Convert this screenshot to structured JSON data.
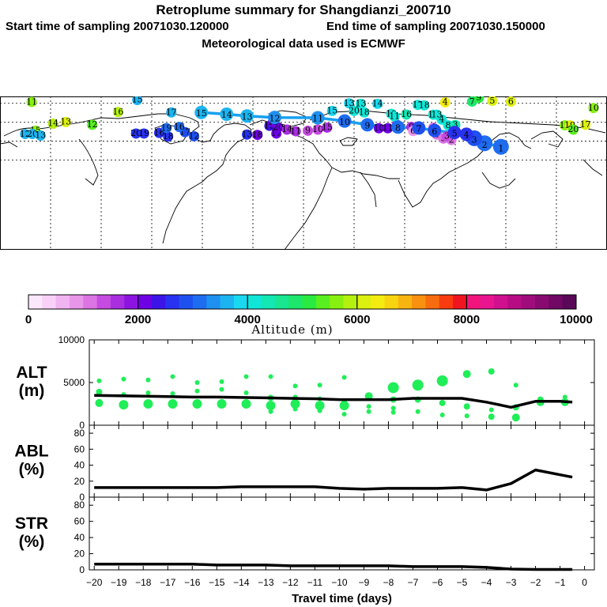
{
  "header": {
    "title": "Retroplume summary for Shangdianzi_200710",
    "start_label": "Start time of sampling 20071030.120000",
    "end_label": "End time of sampling 20071030.150000",
    "met_label": "Meteorological data used is ECMWF"
  },
  "colorbar": {
    "title": "Altitude (m)",
    "ticks": [
      "0",
      "2000",
      "4000",
      "6000",
      "8000",
      "10000"
    ],
    "range": [
      0,
      10000
    ],
    "colors": [
      "#fbe7fb",
      "#f8d0f8",
      "#f0b4f0",
      "#e896ea",
      "#dc74e4",
      "#c64be0",
      "#a82ee0",
      "#8c14e0",
      "#6e00e4",
      "#3c14e8",
      "#2832f0",
      "#1e50f0",
      "#1e6cf0",
      "#1e90f0",
      "#1cb4f0",
      "#1ad8f0",
      "#10e6d8",
      "#14e6b4",
      "#18e690",
      "#1ce66c",
      "#28ea40",
      "#58ee20",
      "#88f010",
      "#b4f010",
      "#dcf010",
      "#f4ec10",
      "#f8d410",
      "#f8b410",
      "#f89010",
      "#f86c10",
      "#f83c10",
      "#f01420",
      "#f0147c",
      "#e81490",
      "#d0108c",
      "#b80c84",
      "#a00c7c",
      "#880a70",
      "#700864",
      "#5a0858"
    ]
  },
  "map": {
    "trajectory_markers": [
      {
        "label": "1",
        "lon": 117.1,
        "lat": 40.6,
        "alt": 3000
      },
      {
        "label": "2",
        "lon": 107.4,
        "lat": 43.4,
        "alt": 3200
      },
      {
        "label": "3",
        "lon": 101.3,
        "lat": 47.4,
        "alt": 2900
      },
      {
        "label": "4",
        "lon": 96.6,
        "lat": 50.5,
        "alt": 2500
      },
      {
        "label": "5",
        "lon": 89.6,
        "lat": 51.9,
        "alt": 2700
      },
      {
        "label": "6",
        "lon": 77.7,
        "lat": 53.5,
        "alt": 2800
      },
      {
        "label": "7",
        "lon": 68.4,
        "lat": 55.5,
        "alt": 2900
      },
      {
        "label": "8",
        "lon": 56.0,
        "lat": 56.2,
        "alt": 3000
      },
      {
        "label": "9",
        "lon": 37.9,
        "lat": 58.0,
        "alt": 3100
      },
      {
        "label": "10",
        "lon": 24.4,
        "lat": 61.0,
        "alt": 3200
      },
      {
        "label": "11",
        "lon": 8.5,
        "lat": 63.6,
        "alt": 3300
      },
      {
        "label": "12",
        "lon": -17.1,
        "lat": 63.8,
        "alt": 3400
      },
      {
        "label": "13",
        "lon": -33.5,
        "lat": 65.0,
        "alt": 3500
      },
      {
        "label": "14",
        "lon": -45.6,
        "lat": 66.4,
        "alt": 3500
      },
      {
        "label": "15",
        "lon": -60.6,
        "lat": 67.8,
        "alt": 3600
      }
    ],
    "scatter_markers": [
      {
        "label": "11",
        "lon": -161.2,
        "lat": 76.1,
        "alt": 5600
      },
      {
        "label": "15",
        "lon": -98.6,
        "lat": 77.7,
        "alt": 3700
      },
      {
        "label": "16",
        "lon": -110.0,
        "lat": 68.1,
        "alt": 5800
      },
      {
        "label": "17",
        "lon": -78.4,
        "lat": 67.8,
        "alt": 3600
      },
      {
        "label": "14",
        "lon": -148.5,
        "lat": 58.9,
        "alt": 5800
      },
      {
        "label": "13",
        "lon": -141.0,
        "lat": 60.2,
        "alt": 6000
      },
      {
        "label": "12",
        "lon": -125.3,
        "lat": 58.0,
        "alt": 5400
      },
      {
        "label": "15",
        "lon": -159.0,
        "lat": 53.3,
        "alt": 5700
      },
      {
        "label": "12",
        "lon": -165.1,
        "lat": 50.7,
        "alt": 3700
      },
      {
        "label": "20",
        "lon": -160.8,
        "lat": 50.7,
        "alt": 3700
      },
      {
        "label": "13",
        "lon": -156.0,
        "lat": 49.5,
        "alt": 3700
      },
      {
        "label": "20",
        "lon": -99.3,
        "lat": 51.1,
        "alt": 2600
      },
      {
        "label": "19",
        "lon": -94.6,
        "lat": 51.1,
        "alt": 2600
      },
      {
        "label": "16",
        "lon": -85.6,
        "lat": 51.6,
        "alt": 2500
      },
      {
        "label": "18",
        "lon": -80.3,
        "lat": 48.7,
        "alt": 2600
      },
      {
        "label": "19",
        "lon": -81.3,
        "lat": 55.4,
        "alt": 3000
      },
      {
        "label": "17",
        "lon": -70.3,
        "lat": 52.2,
        "alt": 2800
      },
      {
        "label": "12",
        "lon": -64.9,
        "lat": 48.9,
        "alt": 2800
      },
      {
        "label": "16",
        "lon": -73.7,
        "lat": 56.3,
        "alt": 3100
      },
      {
        "label": "13",
        "lon": -33.5,
        "lat": 50.3,
        "alt": 2500
      },
      {
        "label": "18",
        "lon": -27.3,
        "lat": 50.0,
        "alt": 2200
      },
      {
        "label": "17",
        "lon": -16.1,
        "lat": 51.1,
        "alt": 2100
      },
      {
        "label": "20",
        "lon": -15.0,
        "lat": 56.0,
        "alt": 2200
      },
      {
        "label": "19",
        "lon": -20.2,
        "lat": 57.2,
        "alt": 2300
      },
      {
        "label": "16",
        "lon": -18.1,
        "lat": 60.0,
        "alt": 2100
      },
      {
        "label": "14",
        "lon": -9.8,
        "lat": 54.2,
        "alt": 1600
      },
      {
        "label": "11",
        "lon": -4.6,
        "lat": 52.9,
        "alt": 1600
      },
      {
        "label": "9",
        "lon": 2.6,
        "lat": 53.3,
        "alt": 1400
      },
      {
        "label": "10",
        "lon": 8.5,
        "lat": 54.2,
        "alt": 1400
      },
      {
        "label": "15",
        "lon": 14.0,
        "lat": 55.8,
        "alt": 1500
      },
      {
        "label": "8",
        "lon": 38.0,
        "lat": 56.9,
        "alt": 1300
      },
      {
        "label": "10",
        "lon": 44.7,
        "lat": 55.3,
        "alt": 2100
      },
      {
        "label": "11",
        "lon": 50.0,
        "lat": 55.3,
        "alt": 2200
      },
      {
        "label": "7",
        "lon": 55.4,
        "lat": 58.1,
        "alt": 1700
      },
      {
        "label": "9",
        "lon": 64.0,
        "lat": 56.3,
        "alt": 1600
      },
      {
        "label": "6",
        "lon": 65.0,
        "lat": 53.1,
        "alt": 900
      },
      {
        "label": "4",
        "lon": 77.0,
        "lat": 55.8,
        "alt": 1000
      },
      {
        "label": "4",
        "lon": 79.0,
        "lat": 50.3,
        "alt": 1000
      },
      {
        "label": "5",
        "lon": 83.0,
        "lat": 47.1,
        "alt": 1200
      },
      {
        "label": "2",
        "lon": 87.7,
        "lat": 46.0,
        "alt": 1100
      },
      {
        "label": "3",
        "lon": 85.0,
        "lat": 48.9,
        "alt": 1300
      },
      {
        "label": "8",
        "lon": 85.8,
        "lat": 57.6,
        "alt": 4200
      },
      {
        "label": "3",
        "lon": 90.0,
        "lat": 57.9,
        "alt": 4400
      },
      {
        "label": "4",
        "lon": 82.0,
        "lat": 62.2,
        "alt": 4000
      },
      {
        "label": "10",
        "lon": 52.1,
        "lat": 66.7,
        "alt": 4100
      },
      {
        "label": "11",
        "lon": 54.0,
        "lat": 64.6,
        "alt": 4000
      },
      {
        "label": "16",
        "lon": 61.0,
        "lat": 66.1,
        "alt": 4300
      },
      {
        "label": "12",
        "lon": 77.0,
        "lat": 66.0,
        "alt": 4000
      },
      {
        "label": "13",
        "lon": 79.0,
        "lat": 66.0,
        "alt": 4000
      },
      {
        "label": "13",
        "lon": 27.0,
        "lat": 75.0,
        "alt": 3800
      },
      {
        "label": "13",
        "lon": 34.0,
        "lat": 74.6,
        "alt": 4000
      },
      {
        "label": "14",
        "lon": 43.9,
        "lat": 74.6,
        "alt": 3800
      },
      {
        "label": "15",
        "lon": 17.0,
        "lat": 69.0,
        "alt": 3800
      },
      {
        "label": "20",
        "lon": 30.0,
        "lat": 69.0,
        "alt": 4000
      },
      {
        "label": "18",
        "lon": 36.0,
        "lat": 67.8,
        "alt": 4000
      },
      {
        "label": "17",
        "lon": 67.8,
        "lat": 73.8,
        "alt": 4200
      },
      {
        "label": "18",
        "lon": 71.6,
        "lat": 73.4,
        "alt": 4200
      },
      {
        "label": "4",
        "lon": 84.0,
        "lat": 75.8,
        "alt": 6300
      },
      {
        "label": "7",
        "lon": 100.0,
        "lat": 76.4,
        "alt": 4900
      },
      {
        "label": "9",
        "lon": 104.0,
        "lat": 79.3,
        "alt": 5100
      },
      {
        "label": "5",
        "lon": 112.0,
        "lat": 77.0,
        "alt": 6000
      },
      {
        "label": "6",
        "lon": 123.0,
        "lat": 76.4,
        "alt": 6100
      },
      {
        "label": "10",
        "lon": 172.0,
        "lat": 71.3,
        "alt": 5500
      },
      {
        "label": "11",
        "lon": 155.0,
        "lat": 57.6,
        "alt": 5700
      },
      {
        "label": "19",
        "lon": 158.0,
        "lat": 57.6,
        "alt": 6000
      },
      {
        "label": "20",
        "lon": 160.0,
        "lat": 54.2,
        "alt": 5300
      },
      {
        "label": "17",
        "lon": 167.2,
        "lat": 58.0,
        "alt": 6000
      }
    ]
  },
  "chart_data": [
    {
      "panel": "ALT",
      "type": "line",
      "ylabel": [
        "ALT",
        "(m)"
      ],
      "ylim": [
        0,
        10000
      ],
      "yticks": [
        0,
        5000,
        10000
      ],
      "ytick_labels": [
        "0",
        "5000",
        "10000"
      ],
      "line": {
        "x": [
          -20,
          -19,
          -18,
          -17,
          -16,
          -15,
          -14,
          -13,
          -12,
          -11,
          -10,
          -9,
          -8,
          -7,
          -6,
          -5,
          -4,
          -3,
          -2,
          -1,
          -0.5
        ],
        "y": [
          3500,
          3450,
          3400,
          3350,
          3300,
          3300,
          3250,
          3200,
          3150,
          3100,
          3000,
          3000,
          3000,
          3150,
          3150,
          3150,
          2700,
          2100,
          2800,
          2800,
          2700
        ]
      },
      "dots": [
        {
          "x": -19.8,
          "y": 5200,
          "r": 3
        },
        {
          "x": -19.8,
          "y": 3900,
          "r": 4
        },
        {
          "x": -19.8,
          "y": 2600,
          "r": 5
        },
        {
          "x": -18.8,
          "y": 5400,
          "r": 3
        },
        {
          "x": -18.8,
          "y": 3600,
          "r": 3
        },
        {
          "x": -18.8,
          "y": 2400,
          "r": 6
        },
        {
          "x": -17.8,
          "y": 5300,
          "r": 3
        },
        {
          "x": -17.8,
          "y": 3800,
          "r": 3
        },
        {
          "x": -17.8,
          "y": 2500,
          "r": 6
        },
        {
          "x": -16.8,
          "y": 5700,
          "r": 3
        },
        {
          "x": -16.8,
          "y": 3700,
          "r": 3
        },
        {
          "x": -16.8,
          "y": 2500,
          "r": 6
        },
        {
          "x": -15.8,
          "y": 5000,
          "r": 3
        },
        {
          "x": -15.8,
          "y": 4000,
          "r": 3
        },
        {
          "x": -15.8,
          "y": 2500,
          "r": 6
        },
        {
          "x": -14.8,
          "y": 5100,
          "r": 3
        },
        {
          "x": -14.8,
          "y": 4200,
          "r": 3
        },
        {
          "x": -14.8,
          "y": 2500,
          "r": 6
        },
        {
          "x": -13.8,
          "y": 5700,
          "r": 3
        },
        {
          "x": -13.8,
          "y": 3800,
          "r": 3
        },
        {
          "x": -13.8,
          "y": 2500,
          "r": 6
        },
        {
          "x": -12.8,
          "y": 5700,
          "r": 3
        },
        {
          "x": -12.8,
          "y": 3200,
          "r": 4
        },
        {
          "x": -12.8,
          "y": 2300,
          "r": 6
        },
        {
          "x": -12.8,
          "y": 1600,
          "r": 3
        },
        {
          "x": -11.8,
          "y": 4600,
          "r": 3
        },
        {
          "x": -11.8,
          "y": 3300,
          "r": 3
        },
        {
          "x": -11.8,
          "y": 2500,
          "r": 6
        },
        {
          "x": -11.8,
          "y": 1900,
          "r": 3
        },
        {
          "x": -10.8,
          "y": 4700,
          "r": 3
        },
        {
          "x": -10.8,
          "y": 3100,
          "r": 3
        },
        {
          "x": -10.8,
          "y": 2300,
          "r": 6
        },
        {
          "x": -10.8,
          "y": 1700,
          "r": 3
        },
        {
          "x": -9.8,
          "y": 5600,
          "r": 3
        },
        {
          "x": -9.8,
          "y": 2800,
          "r": 3
        },
        {
          "x": -9.8,
          "y": 2300,
          "r": 6
        },
        {
          "x": -9.8,
          "y": 1300,
          "r": 3
        },
        {
          "x": -8.8,
          "y": 3400,
          "r": 5
        },
        {
          "x": -8.8,
          "y": 2200,
          "r": 3
        },
        {
          "x": -8.8,
          "y": 1600,
          "r": 3
        },
        {
          "x": -7.8,
          "y": 4400,
          "r": 7
        },
        {
          "x": -7.8,
          "y": 3000,
          "r": 4
        },
        {
          "x": -7.8,
          "y": 2000,
          "r": 3
        },
        {
          "x": -7.8,
          "y": 1500,
          "r": 3
        },
        {
          "x": -6.8,
          "y": 4700,
          "r": 7
        },
        {
          "x": -6.8,
          "y": 3000,
          "r": 4
        },
        {
          "x": -6.8,
          "y": 1600,
          "r": 3
        },
        {
          "x": -5.8,
          "y": 5200,
          "r": 7
        },
        {
          "x": -5.8,
          "y": 2600,
          "r": 4
        },
        {
          "x": -5.8,
          "y": 1200,
          "r": 3
        },
        {
          "x": -4.8,
          "y": 6000,
          "r": 5
        },
        {
          "x": -4.8,
          "y": 2200,
          "r": 4
        },
        {
          "x": -4.8,
          "y": 1100,
          "r": 3
        },
        {
          "x": -3.8,
          "y": 6300,
          "r": 4
        },
        {
          "x": -3.8,
          "y": 1800,
          "r": 3
        },
        {
          "x": -3.8,
          "y": 1000,
          "r": 4
        },
        {
          "x": -2.8,
          "y": 4700,
          "r": 3
        },
        {
          "x": -2.8,
          "y": 2100,
          "r": 4
        },
        {
          "x": -2.8,
          "y": 900,
          "r": 5
        },
        {
          "x": -1.8,
          "y": 3000,
          "r": 4
        },
        {
          "x": -1.8,
          "y": 2700,
          "r": 5
        },
        {
          "x": -0.8,
          "y": 3300,
          "r": 3
        },
        {
          "x": -0.8,
          "y": 2700,
          "r": 5
        }
      ]
    },
    {
      "panel": "ABL",
      "type": "line",
      "ylabel": [
        "ABL",
        "(%)"
      ],
      "ylim": [
        0,
        90
      ],
      "yticks": [
        0,
        20,
        40,
        60,
        80
      ],
      "ytick_labels": [
        "0",
        "20",
        "40",
        "60",
        "80"
      ],
      "line": {
        "x": [
          -20,
          -19,
          -18,
          -17,
          -16,
          -15,
          -14,
          -13,
          -12,
          -11,
          -10,
          -9,
          -8,
          -7,
          -6,
          -5,
          -4,
          -3,
          -2,
          -1,
          -0.5
        ],
        "y": [
          12,
          12,
          12,
          12,
          12,
          12,
          13,
          13,
          13,
          13,
          11,
          10,
          11,
          11,
          11,
          12,
          9,
          17,
          34,
          28,
          25
        ]
      }
    },
    {
      "panel": "STR",
      "type": "line",
      "ylabel": [
        "STR",
        "(%)"
      ],
      "ylim": [
        0,
        90
      ],
      "yticks": [
        0,
        20,
        40,
        60,
        80
      ],
      "ytick_labels": [
        "0",
        "20",
        "40",
        "60",
        "80"
      ],
      "xlabel": "Travel time (days)",
      "xlim": [
        -20.2,
        0.4
      ],
      "xticks": [
        -20,
        -19,
        -18,
        -17,
        -16,
        -15,
        -14,
        -13,
        -12,
        -11,
        -10,
        -9,
        -8,
        -7,
        -6,
        -5,
        -4,
        -3,
        -2,
        -1,
        0
      ],
      "xtick_labels": [
        "−20",
        "−19",
        "−18",
        "−17",
        "−16",
        "−15",
        "−14",
        "−13",
        "−12",
        "−11",
        "−10",
        "−9",
        "−8",
        "−7",
        "−6",
        "−5",
        "−4",
        "−3",
        "−2",
        "−1",
        "0"
      ],
      "line": {
        "x": [
          -20,
          -19,
          -18,
          -17,
          -16,
          -15,
          -14,
          -13,
          -12,
          -11,
          -10,
          -9,
          -8,
          -7,
          -6,
          -5,
          -4,
          -3,
          -2,
          -1,
          -0.5
        ],
        "y": [
          7,
          7,
          7,
          7,
          7,
          6,
          6,
          6,
          5,
          5,
          5,
          5,
          5,
          4,
          4,
          4,
          3,
          1,
          0.5,
          0.5,
          0.5
        ]
      }
    }
  ]
}
